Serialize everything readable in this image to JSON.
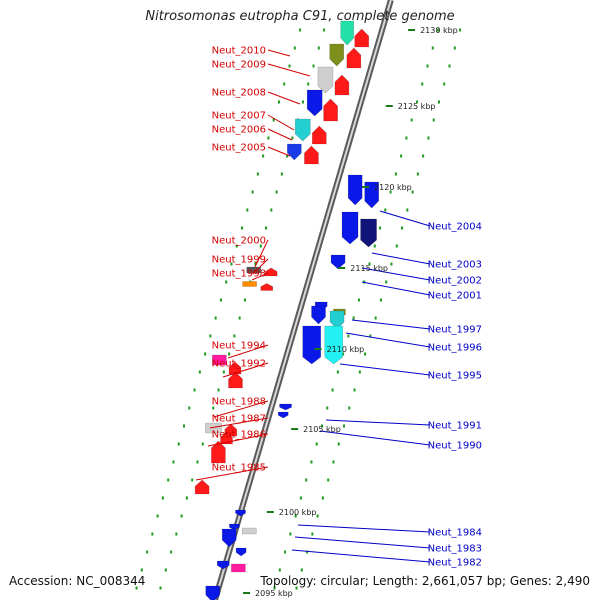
{
  "title": "Nitrosomonas eutropha C91, complete genome",
  "accession": "Accession: NC_008344",
  "stats": "Topology: circular; Length: 2,661,057 bp; Genes: 2,490",
  "colors": {
    "forward_label": "#d40000",
    "reverse_label": "#0000c8"
  },
  "ticks": [
    "2130 kbp",
    "2125 kbp",
    "2120 kbp",
    "2115 kbp",
    "2110 kbp",
    "2105 kbp",
    "2100 kbp",
    "2095 kbp"
  ],
  "left_labels": [
    "Neut_2010",
    "Neut_2009",
    "Neut_2008",
    "Neut_2007",
    "Neut_2006",
    "Neut_2005",
    "Neut_2000",
    "Neut_1999",
    "Neut_1998",
    "Neut_1994",
    "Neut_1992",
    "Neut_1988",
    "Neut_1987",
    "Neut_1986",
    "Neut_1985"
  ],
  "right_labels": [
    "Neut_2004",
    "Neut_2003",
    "Neut_2002",
    "Neut_2001",
    "Neut_1997",
    "Neut_1996",
    "Neut_1995",
    "Neut_1991",
    "Neut_1990",
    "Neut_1984",
    "Neut_1983",
    "Neut_1982"
  ]
}
